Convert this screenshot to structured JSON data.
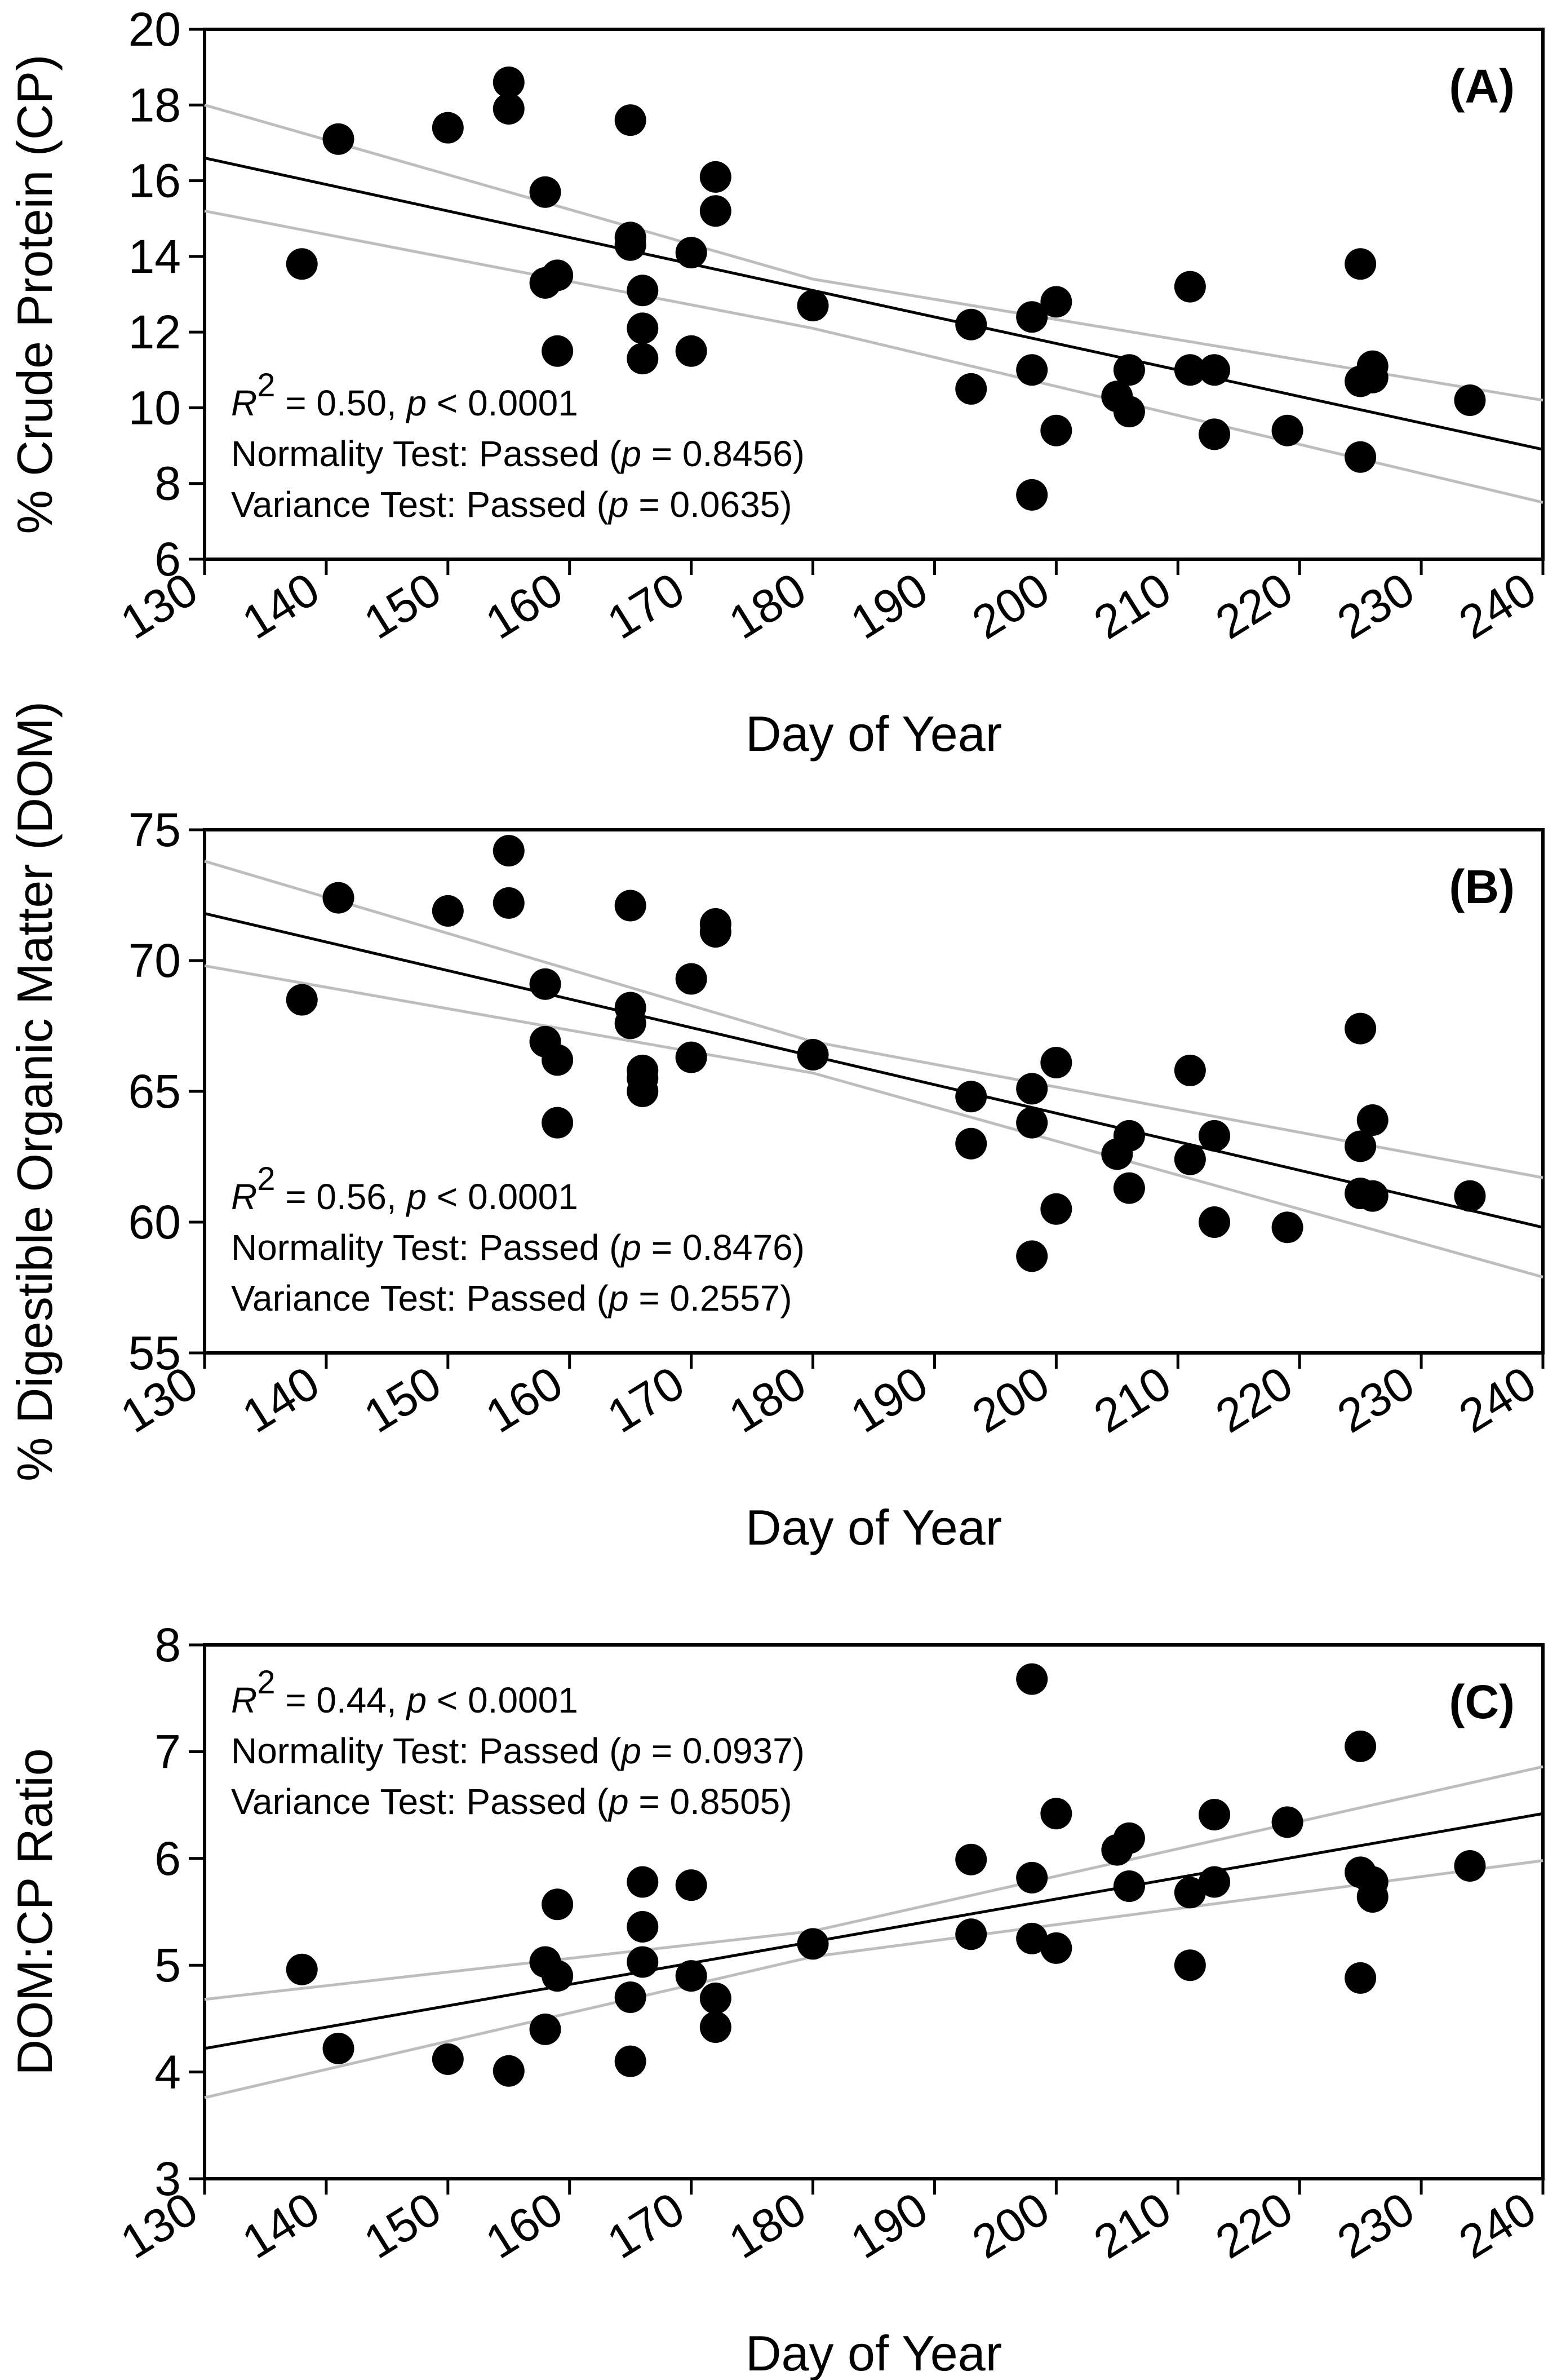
{
  "chart_data": [
    {
      "type": "scatter",
      "panel_label": "(A)",
      "xlabel": "Day of Year",
      "ylabel": "% Crude Protein (CP)",
      "xlim": [
        130,
        240
      ],
      "ylim": [
        6,
        20
      ],
      "xticks": [
        130,
        140,
        150,
        160,
        170,
        180,
        190,
        200,
        210,
        220,
        230,
        240
      ],
      "yticks": [
        6,
        8,
        10,
        12,
        14,
        16,
        18,
        20
      ],
      "stats": {
        "r2_symbol": "R",
        "r2_power": "2",
        "r2_value": " = 0.50, ",
        "p_symbol": "p",
        "p_value": " < 0.0001",
        "normality_prefix": "Normality Test: Passed (",
        "normality_p": " = 0.8456)",
        "variance_prefix": "Variance Test: Passed (",
        "variance_p": " = 0.0635)"
      },
      "regression": {
        "x": [
          130,
          240
        ],
        "y": [
          16.6,
          8.9
        ]
      },
      "ci_upper": {
        "x": [
          130,
          180,
          240
        ],
        "y": [
          18.0,
          13.4,
          10.2
        ]
      },
      "ci_lower": {
        "x": [
          130,
          180,
          240
        ],
        "y": [
          15.2,
          12.1,
          7.5
        ]
      },
      "points": {
        "x": [
          138,
          141,
          150,
          155,
          155,
          158,
          158,
          159,
          159,
          165,
          165,
          165,
          166,
          166,
          166,
          170,
          170,
          172,
          172,
          180,
          193,
          193,
          198,
          198,
          198,
          200,
          200,
          205,
          206,
          206,
          211,
          211,
          213,
          213,
          219,
          225,
          225,
          225,
          226,
          226,
          234
        ],
        "y": [
          13.8,
          17.1,
          17.4,
          18.6,
          17.9,
          15.7,
          13.3,
          13.5,
          11.5,
          17.6,
          14.5,
          14.3,
          13.1,
          12.1,
          11.3,
          14.1,
          11.5,
          16.1,
          15.2,
          12.7,
          12.2,
          10.5,
          12.4,
          11.0,
          7.7,
          12.8,
          9.4,
          10.3,
          11.0,
          9.9,
          13.2,
          11.0,
          11.0,
          9.3,
          9.4,
          13.8,
          10.7,
          8.7,
          11.1,
          10.8,
          10.2
        ]
      }
    },
    {
      "type": "scatter",
      "panel_label": "(B)",
      "xlabel": "Day of Year",
      "ylabel": "% Digestible Organic Matter (DOM)",
      "xlim": [
        130,
        240
      ],
      "ylim": [
        55,
        75
      ],
      "xticks": [
        130,
        140,
        150,
        160,
        170,
        180,
        190,
        200,
        210,
        220,
        230,
        240
      ],
      "yticks": [
        55,
        60,
        65,
        70,
        75
      ],
      "stats": {
        "r2_symbol": "R",
        "r2_power": "2",
        "r2_value": " = 0.56, ",
        "p_symbol": "p",
        "p_value": " < 0.0001",
        "normality_prefix": "Normality Test: Passed (",
        "normality_p": " = 0.8476)",
        "variance_prefix": "Variance Test: Passed (",
        "variance_p": " = 0.2557)"
      },
      "regression": {
        "x": [
          130,
          240
        ],
        "y": [
          71.8,
          59.8
        ]
      },
      "ci_upper": {
        "x": [
          130,
          180,
          240
        ],
        "y": [
          73.8,
          66.9,
          61.7
        ]
      },
      "ci_lower": {
        "x": [
          130,
          180,
          240
        ],
        "y": [
          69.8,
          65.7,
          57.9
        ]
      },
      "points": {
        "x": [
          138,
          141,
          150,
          155,
          155,
          158,
          158,
          159,
          159,
          165,
          165,
          165,
          166,
          166,
          166,
          170,
          170,
          172,
          172,
          180,
          193,
          193,
          198,
          198,
          198,
          200,
          200,
          205,
          206,
          206,
          211,
          211,
          213,
          213,
          219,
          225,
          225,
          225,
          226,
          226,
          234
        ],
        "y": [
          68.5,
          72.4,
          71.9,
          74.2,
          72.2,
          69.1,
          66.9,
          66.2,
          63.8,
          72.1,
          68.2,
          67.6,
          65.8,
          65.5,
          65.0,
          69.3,
          66.3,
          71.4,
          71.1,
          66.4,
          64.8,
          63.0,
          65.1,
          63.8,
          58.7,
          66.1,
          60.5,
          62.6,
          63.3,
          61.3,
          65.8,
          62.4,
          63.3,
          60.0,
          59.8,
          67.4,
          62.9,
          61.1,
          63.9,
          61.0,
          61.0
        ]
      }
    },
    {
      "type": "scatter",
      "panel_label": "(C)",
      "xlabel": "Day of Year",
      "ylabel": "DOM:CP Ratio",
      "xlim": [
        130,
        240
      ],
      "ylim": [
        3,
        8
      ],
      "xticks": [
        130,
        140,
        150,
        160,
        170,
        180,
        190,
        200,
        210,
        220,
        230,
        240
      ],
      "yticks": [
        3,
        4,
        5,
        6,
        7,
        8
      ],
      "stats": {
        "r2_symbol": "R",
        "r2_power": "2",
        "r2_value": " = 0.44, ",
        "p_symbol": "p",
        "p_value": " < 0.0001",
        "normality_prefix": "Normality Test: Passed (",
        "normality_p": " = 0.0937)",
        "variance_prefix": "Variance Test: Passed (",
        "variance_p": " = 0.8505)"
      },
      "regression": {
        "x": [
          130,
          240
        ],
        "y": [
          4.22,
          6.42
        ]
      },
      "ci_upper": {
        "x": [
          130,
          180,
          240
        ],
        "y": [
          4.68,
          5.32,
          6.86
        ]
      },
      "ci_lower": {
        "x": [
          130,
          180,
          240
        ],
        "y": [
          3.76,
          5.08,
          5.98
        ]
      },
      "points": {
        "x": [
          138,
          141,
          150,
          155,
          158,
          158,
          159,
          159,
          165,
          165,
          166,
          166,
          166,
          170,
          170,
          172,
          172,
          180,
          193,
          193,
          198,
          198,
          198,
          200,
          200,
          205,
          206,
          206,
          211,
          211,
          213,
          213,
          219,
          225,
          225,
          225,
          226,
          226,
          234
        ],
        "y": [
          4.96,
          4.22,
          4.12,
          4.01,
          5.03,
          4.4,
          5.57,
          4.9,
          4.7,
          4.1,
          5.78,
          5.36,
          5.03,
          5.75,
          4.9,
          4.69,
          4.42,
          5.2,
          5.99,
          5.29,
          7.68,
          5.82,
          5.25,
          6.42,
          5.16,
          6.08,
          6.19,
          5.74,
          5.68,
          5.0,
          6.41,
          5.78,
          6.34,
          7.05,
          5.87,
          4.88,
          5.78,
          5.64,
          5.93
        ]
      }
    }
  ]
}
